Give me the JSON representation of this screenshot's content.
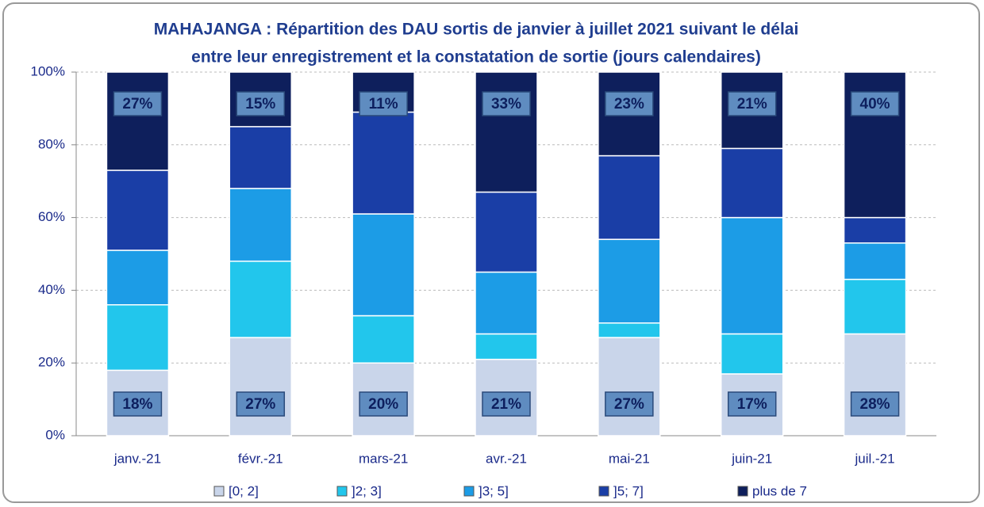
{
  "chart_data": {
    "type": "stacked_bar",
    "title": [
      "MAHAJANGA : Répartition des DAU sortis de janvier à juillet 2021 suivant le délai",
      "entre leur enregistrement et la constatation de sortie (jours calendaires)"
    ],
    "categories": [
      "janv.-21",
      "févr.-21",
      "mars-21",
      "avr.-21",
      "mai-21",
      "juin-21",
      "juil.-21"
    ],
    "series": [
      {
        "name": "[0; 2]",
        "color": "#c9d5ea",
        "values": [
          18,
          27,
          20,
          21,
          27,
          17,
          28
        ],
        "value_labels": [
          "18%",
          "27%",
          "20%",
          "21%",
          "27%",
          "17%",
          "28%"
        ]
      },
      {
        "name": "]2; 3]",
        "color": "#22c6ec",
        "values": [
          18,
          21,
          13,
          7,
          4,
          11,
          15
        ]
      },
      {
        "name": "]3; 5]",
        "color": "#1c9ce6",
        "values": [
          15,
          20,
          28,
          17,
          23,
          32,
          10
        ]
      },
      {
        "name": "]5; 7]",
        "color": "#1a3ea6",
        "values": [
          22,
          17,
          28,
          22,
          23,
          19,
          7
        ]
      },
      {
        "name": "plus de 7",
        "color": "#0e1f5c",
        "values": [
          27,
          15,
          11,
          33,
          23,
          21,
          40
        ],
        "value_labels": [
          "27%",
          "15%",
          "11%",
          "33%",
          "23%",
          "21%",
          "40%"
        ]
      }
    ],
    "ylim": [
      0,
      100
    ],
    "yticks": [
      {
        "value": 0,
        "label": "0%"
      },
      {
        "value": 20,
        "label": "20%"
      },
      {
        "value": 40,
        "label": "40%"
      },
      {
        "value": 60,
        "label": "60%"
      },
      {
        "value": 80,
        "label": "80%"
      },
      {
        "value": 100,
        "label": "100%"
      }
    ],
    "grid": true
  }
}
